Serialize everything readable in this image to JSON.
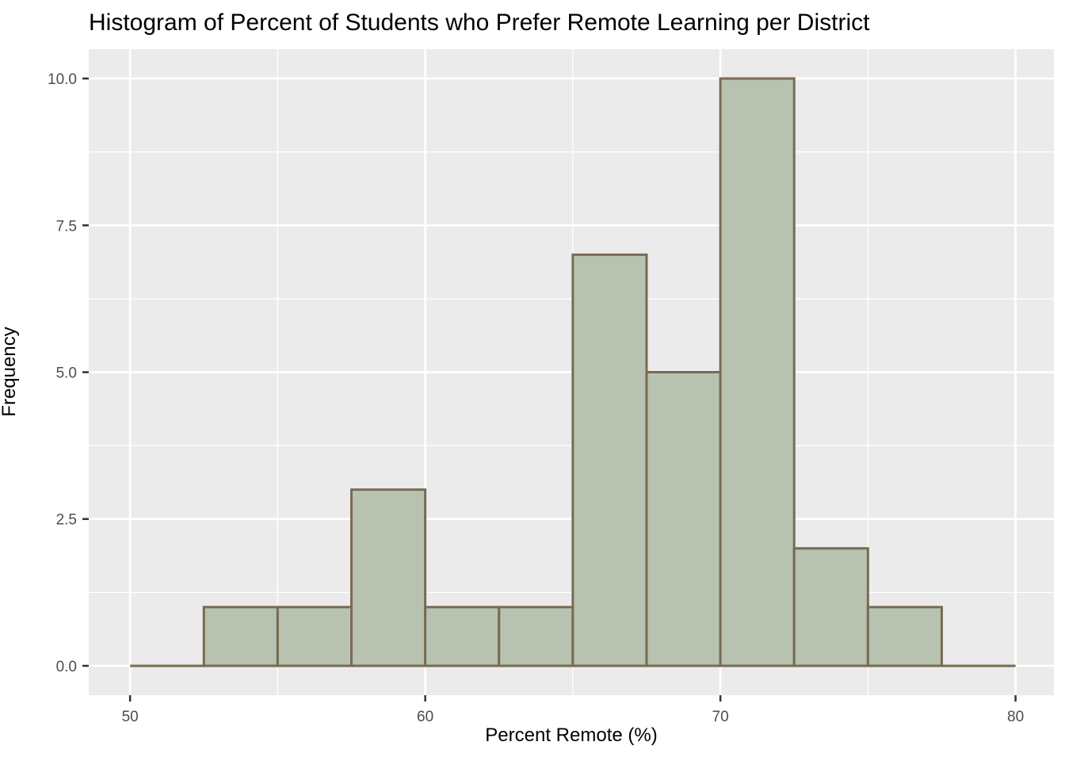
{
  "title": "Histogram of Percent of Students who Prefer Remote Learning per District",
  "axes": {
    "x_title": "Percent Remote (%)",
    "y_title": "Frequency",
    "x_tick_labels": [
      "50",
      "60",
      "70",
      "80"
    ],
    "y_tick_labels": [
      "0.0",
      "2.5",
      "5.0",
      "7.5",
      "10.0"
    ]
  },
  "chart_data": {
    "type": "bar",
    "subtype": "histogram",
    "title": "Histogram of Percent of Students who Prefer Remote Learning per District",
    "xlabel": "Percent Remote (%)",
    "ylabel": "Frequency",
    "bin_width": 2.5,
    "bin_edges": [
      50,
      52.5,
      55,
      57.5,
      60,
      62.5,
      65,
      67.5,
      70,
      72.5,
      75,
      77.5,
      80
    ],
    "counts": [
      0,
      1,
      1,
      3,
      1,
      1,
      7,
      5,
      10,
      2,
      1,
      0
    ],
    "x_major_ticks": [
      50,
      60,
      70,
      80
    ],
    "x_minor_ticks": [
      55,
      65,
      75
    ],
    "y_major_ticks": [
      0,
      2.5,
      5,
      7.5,
      10
    ],
    "y_minor_ticks": [
      1.25,
      3.75,
      6.25,
      8.75
    ],
    "xlim": [
      48.6,
      81.3
    ],
    "ylim": [
      -0.5,
      10.5
    ],
    "grid": true,
    "legend": "none",
    "colors": {
      "bar_fill": "#b7c3b0",
      "bar_stroke": "#7a6a52",
      "panel_background": "#ebebeb",
      "gridline": "#ffffff",
      "tick_mark": "#333333",
      "tick_label": "#4d4d4d",
      "text": "#000000"
    }
  }
}
